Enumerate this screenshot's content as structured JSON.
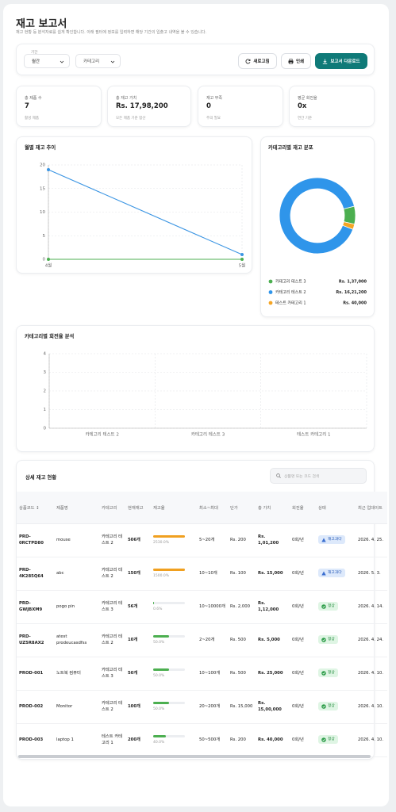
{
  "header": {
    "title": "재고 보고서",
    "subtitle": "재고 현황 등 분석자료를 쉽게 확인합니다. 아래 필터에 정보를 입력하면 해당 기간의 입출고 내역을 볼 수 있습니다."
  },
  "filters": {
    "period_label": "기간",
    "period": "월간",
    "category": "카테고리"
  },
  "actions": [
    "새로고침",
    "인쇄",
    "보고서 다운로드"
  ],
  "kpis": [
    {
      "label": "총 제품 수",
      "value": "7",
      "note": "활성 제품"
    },
    {
      "label": "총 재고 가치",
      "value": "Rs. 17,98,200",
      "note": "모든 제품 기준 합산"
    },
    {
      "label": "재고 부족",
      "value": "0",
      "note": "주의 필요"
    },
    {
      "label": "평균 회전율",
      "value": "0x",
      "note": "연간 기준"
    }
  ],
  "chart_data": [
    {
      "type": "line",
      "title": "월별 재고 추이",
      "categories": [
        "4월",
        "5월"
      ],
      "series": [
        {
          "color": "#3b95e3",
          "values": [
            19,
            1
          ]
        },
        {
          "color": "#4caf50",
          "values": [
            0,
            0
          ]
        }
      ],
      "ylim": [
        0,
        20
      ],
      "yticks": [
        0,
        5,
        10,
        15,
        20
      ],
      "grid": true
    },
    {
      "type": "donut",
      "title": "카테고리별 재고 분포",
      "categories": [
        "카테고리 테스트 3",
        "카테고리 테스트 2",
        "테스트 카테고리 1"
      ],
      "values": [
        137000,
        1621200,
        40000
      ],
      "value_labels": [
        "Rs. 1,37,000",
        "Rs. 16,21,200",
        "Rs. 40,000"
      ],
      "colors": [
        "#4caf50",
        "#2f95ea",
        "#f5a524"
      ]
    },
    {
      "type": "bar",
      "title": "카테고리별 회전율 분석",
      "categories": [
        "카테고리 테스트 2",
        "카테고리 테스트 3",
        "테스트 카테고리 1"
      ],
      "values": [
        0,
        0,
        0
      ],
      "ylim": [
        0,
        4
      ],
      "yticks": [
        0,
        1,
        2,
        3,
        4
      ],
      "grid": true
    }
  ],
  "table": {
    "title": "상세 재고 현황",
    "search_placeholder": "상품명 또는 코드 검색",
    "columns": [
      "상품코드 ↕",
      "제품명",
      "카테고리",
      "현재재고",
      "재고율",
      "최소~최대",
      "단가",
      "총 가치",
      "회전율",
      "상태",
      "최근 업데이트"
    ],
    "rows": [
      [
        "PRD-0RCTPD80",
        "mouse",
        "카테고리 테스트 2",
        "506개",
        "2530.0%",
        "5~20개",
        "Rs. 200",
        "Rs. 1,01,200",
        "0회/년",
        "재고과다",
        "2026. 4. 25."
      ],
      [
        "PRD-4K285Q64",
        "abc",
        "카테고리 테스트 2",
        "150개",
        "1500.0%",
        "10~10개",
        "Rs. 100",
        "Rs. 15,000",
        "0회/년",
        "재고과다",
        "2026. 5. 3."
      ],
      [
        "PRD-GWJBXM9",
        "pogo pin",
        "카테고리 테스트 3",
        "56개",
        "0.6%",
        "10~10000개",
        "Rs. 2,000",
        "Rs. 1,12,000",
        "0회/년",
        "정상",
        "2026. 4. 14."
      ],
      [
        "PRD-UZ5R8AX2",
        "atest prodeucasdfss",
        "카테고리 테스트 2",
        "10개",
        "50.0%",
        "2~20개",
        "Rs. 500",
        "Rs. 5,000",
        "0회/년",
        "정상",
        "2026. 4. 24."
      ],
      [
        "PROD-001",
        "노트북 컴퓨터",
        "카테고리 테스트 3",
        "50개",
        "50.0%",
        "10~100개",
        "Rs. 500",
        "Rs. 25,000",
        "0회/년",
        "정상",
        "2026. 4. 10."
      ],
      [
        "PROD-002",
        "Monitor",
        "카테고리 테스트 2",
        "100개",
        "50.0%",
        "20~200개",
        "Rs. 15,000",
        "Rs. 15,00,000",
        "0회/년",
        "정상",
        "2026. 4. 10."
      ],
      [
        "PROD-003",
        "laptop 1",
        "테스트 카테고리 1",
        "200개",
        "40.0%",
        "50~500개",
        "Rs. 200",
        "Rs. 40,000",
        "0회/년",
        "정상",
        "2026. 4. 10."
      ]
    ]
  }
}
